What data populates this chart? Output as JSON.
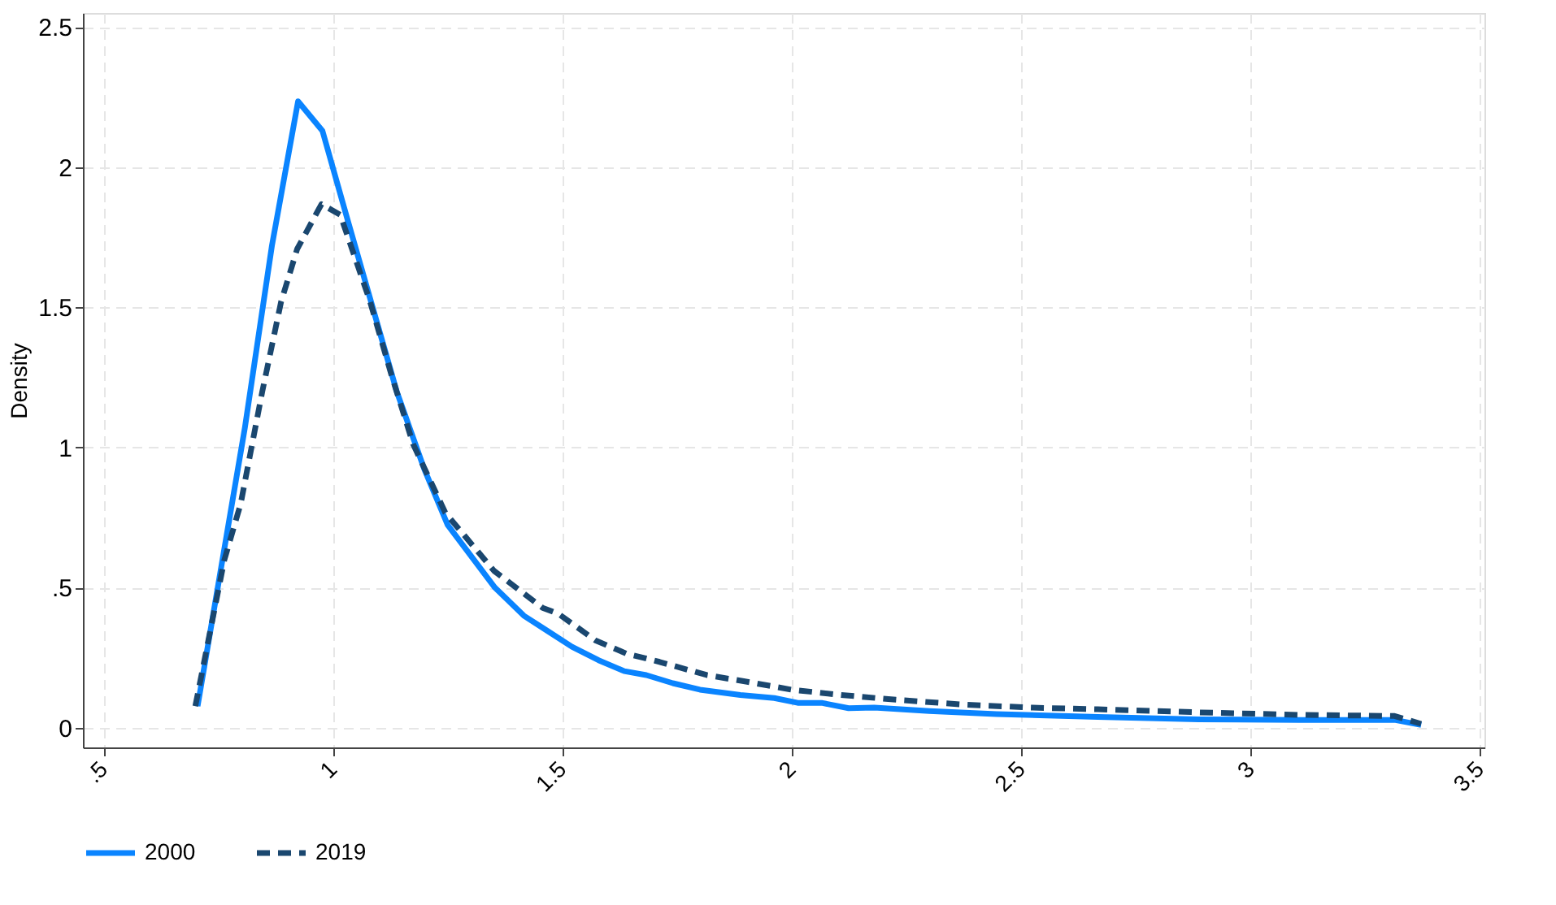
{
  "chart_data": {
    "type": "line",
    "ylabel": "Density",
    "xlim": [
      0.455,
      3.51
    ],
    "ylim": [
      -0.07,
      2.55
    ],
    "xticks": [
      {
        "value": 0.5,
        "label": ".5"
      },
      1,
      1.5,
      2,
      2.5,
      3,
      3.5
    ],
    "yticks": [
      0,
      {
        "value": 0.5,
        "label": ".5"
      },
      1,
      1.5,
      2,
      2.5
    ],
    "grid": true,
    "legend": "bottom",
    "series": [
      {
        "name": "2000",
        "color": "#0a84ff",
        "line_style": "solid",
        "x": [
          0.705,
          0.808,
          0.867,
          0.924,
          0.977,
          1.034,
          1.139,
          1.199,
          1.25,
          1.353,
          1.416,
          1.47,
          1.521,
          1.579,
          1.635,
          1.683,
          1.741,
          1.8,
          1.888,
          1.962,
          2.013,
          2.065,
          2.124,
          2.18,
          2.3,
          2.446,
          2.667,
          2.887,
          3.108,
          3.314,
          3.372
        ],
        "values": [
          0.077,
          1.07,
          1.72,
          2.235,
          2.13,
          1.8,
          1.2,
          0.923,
          0.724,
          0.5,
          0.4,
          0.343,
          0.289,
          0.241,
          0.202,
          0.188,
          0.159,
          0.136,
          0.117,
          0.106,
          0.089,
          0.089,
          0.07,
          0.072,
          0.06,
          0.049,
          0.039,
          0.03,
          0.028,
          0.028,
          0.01
        ]
      },
      {
        "name": "2019",
        "color": "#1a476f",
        "line_style": "dashed",
        "x": [
          0.7,
          0.763,
          0.799,
          0.846,
          0.887,
          0.922,
          0.975,
          1.016,
          1.081,
          1.128,
          1.175,
          1.245,
          1.351,
          1.457,
          1.492,
          1.572,
          1.639,
          1.712,
          1.815,
          1.903,
          1.999,
          2.108,
          2.227,
          2.372,
          2.52,
          2.667,
          2.887,
          3.108,
          3.314,
          3.372
        ],
        "values": [
          0.077,
          0.597,
          0.8,
          1.2,
          1.52,
          1.708,
          1.868,
          1.83,
          1.52,
          1.256,
          1.011,
          0.767,
          0.56,
          0.428,
          0.406,
          0.312,
          0.265,
          0.235,
          0.188,
          0.164,
          0.136,
          0.117,
          0.1,
          0.083,
          0.072,
          0.066,
          0.055,
          0.046,
          0.042,
          0.014
        ]
      }
    ]
  }
}
